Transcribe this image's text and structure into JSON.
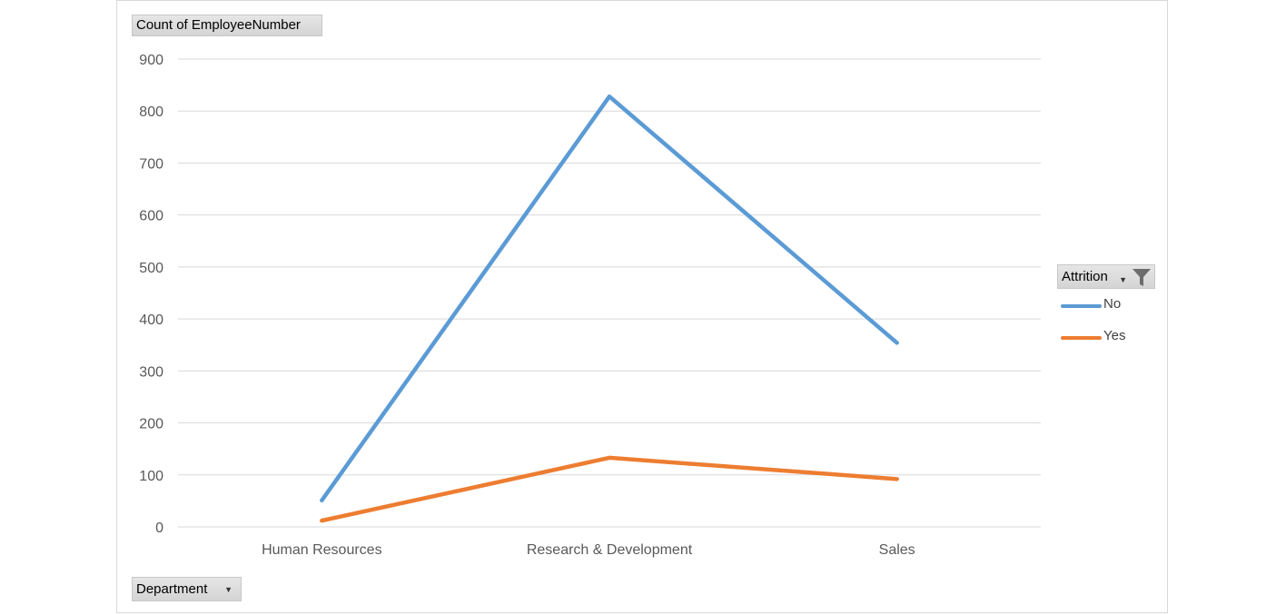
{
  "chart_data": {
    "type": "line",
    "categories": [
      "Human Resources",
      "Research & Development",
      "Sales"
    ],
    "series": [
      {
        "name": "No",
        "values": [
          51,
          828,
          354
        ],
        "color": "#5b9bd5"
      },
      {
        "name": "Yes",
        "values": [
          12,
          133,
          92
        ],
        "color": "#ed7d31"
      }
    ],
    "ylim": [
      0,
      900
    ],
    "yticks": [
      0,
      100,
      200,
      300,
      400,
      500,
      600,
      700,
      800,
      900
    ],
    "grid": true,
    "legend_position": "right"
  },
  "fields": {
    "value_field": "Count of EmployeeNumber",
    "axis_field": "Department",
    "legend_field": "Attrition"
  },
  "icons": {
    "axis_dropdown": "chevron-down-icon",
    "legend_filter": "filter-icon"
  }
}
